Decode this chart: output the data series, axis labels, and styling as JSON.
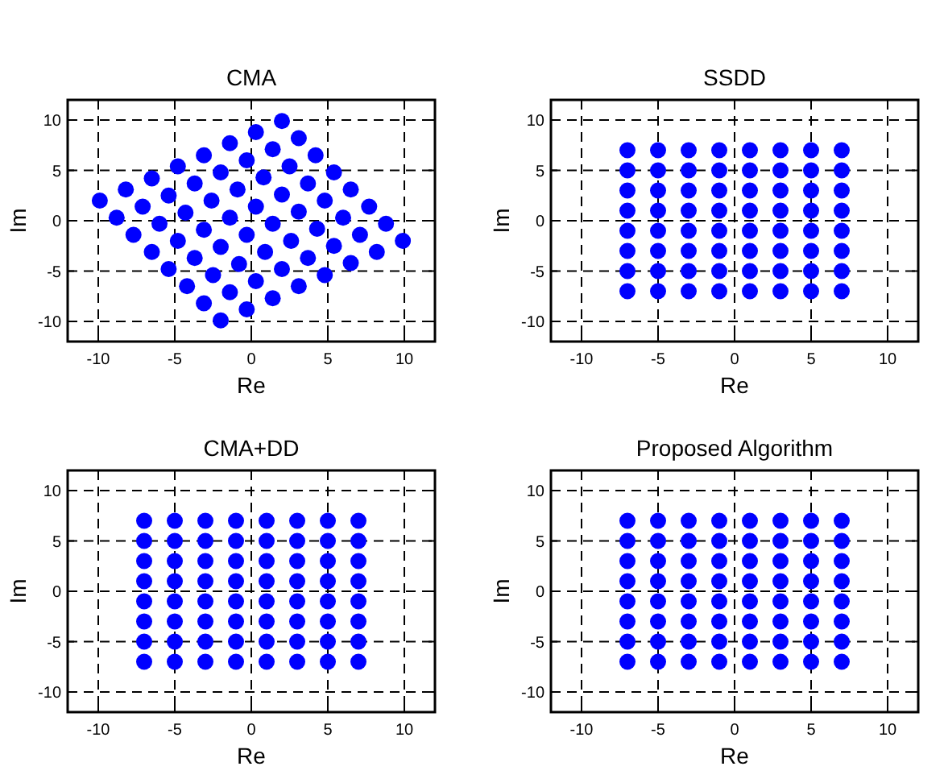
{
  "chart_data": [
    {
      "type": "scatter",
      "title": "CMA",
      "xlabel": "Re",
      "ylabel": "Im",
      "xlim": [
        -12,
        12
      ],
      "ylim": [
        -12,
        12
      ],
      "xticks": [
        -10,
        -5,
        0,
        5,
        10
      ],
      "yticks": [
        -10,
        -5,
        0,
        5,
        10
      ],
      "grid": true,
      "marker": "circle",
      "series": [
        {
          "color": "#0000ff",
          "x": [
            -2.0,
            -3.1,
            -4.2,
            -5.4,
            -6.5,
            -7.7,
            -8.8,
            -9.9,
            -0.3,
            -1.4,
            -2.5,
            -3.7,
            -4.8,
            -6.0,
            -7.1,
            -8.2,
            1.4,
            0.3,
            -0.8,
            -2.0,
            -3.1,
            -4.3,
            -5.4,
            -6.5,
            3.1,
            2.0,
            0.9,
            -0.3,
            -1.4,
            -2.6,
            -3.7,
            -4.8,
            4.8,
            3.7,
            2.6,
            1.4,
            0.3,
            -0.9,
            -2.0,
            -3.1,
            6.5,
            5.4,
            4.3,
            3.1,
            2.0,
            0.8,
            -0.3,
            -1.4,
            8.2,
            7.1,
            6.0,
            4.8,
            3.7,
            2.5,
            1.4,
            0.3,
            9.9,
            8.8,
            7.7,
            6.5,
            5.4,
            4.2,
            3.1,
            2.0
          ],
          "values": [
            -9.9,
            -8.2,
            -6.5,
            -4.8,
            -3.1,
            -1.4,
            0.3,
            2.0,
            -8.8,
            -7.1,
            -5.4,
            -3.7,
            -2.0,
            -0.3,
            1.4,
            3.1,
            -7.7,
            -6.0,
            -4.3,
            -2.6,
            -0.9,
            0.8,
            2.5,
            4.2,
            -6.5,
            -4.8,
            -3.1,
            -1.4,
            0.3,
            2.0,
            3.7,
            5.4,
            -5.4,
            -3.7,
            -2.0,
            -0.3,
            1.4,
            3.1,
            4.8,
            6.5,
            -4.2,
            -2.5,
            -0.8,
            0.9,
            2.6,
            4.3,
            6.0,
            7.7,
            -3.1,
            -1.4,
            0.3,
            2.0,
            3.7,
            5.4,
            7.1,
            8.8,
            -2.0,
            -0.3,
            1.4,
            3.1,
            4.8,
            6.5,
            8.2,
            9.9
          ]
        }
      ]
    },
    {
      "type": "scatter",
      "title": "SSDD",
      "xlabel": "Re",
      "ylabel": "Im",
      "xlim": [
        -12,
        12
      ],
      "ylim": [
        -12,
        12
      ],
      "xticks": [
        -10,
        -5,
        0,
        5,
        10
      ],
      "yticks": [
        -10,
        -5,
        0,
        5,
        10
      ],
      "grid": true,
      "marker": "circle",
      "series": [
        {
          "color": "#0000ff",
          "x": [
            -7,
            -5,
            -3,
            -1,
            1,
            3,
            5,
            7,
            -7,
            -5,
            -3,
            -1,
            1,
            3,
            5,
            7,
            -7,
            -5,
            -3,
            -1,
            1,
            3,
            5,
            7,
            -7,
            -5,
            -3,
            -1,
            1,
            3,
            5,
            7,
            -7,
            -5,
            -3,
            -1,
            1,
            3,
            5,
            7,
            -7,
            -5,
            -3,
            -1,
            1,
            3,
            5,
            7,
            -7,
            -5,
            -3,
            -1,
            1,
            3,
            5,
            7,
            -7,
            -5,
            -3,
            -1,
            1,
            3,
            5,
            7
          ],
          "values": [
            7,
            7,
            7,
            7,
            7,
            7,
            7,
            7,
            5,
            5,
            5,
            5,
            5,
            5,
            5,
            5,
            3,
            3,
            3,
            3,
            3,
            3,
            3,
            3,
            1,
            1,
            1,
            1,
            1,
            1,
            1,
            1,
            -1,
            -1,
            -1,
            -1,
            -1,
            -1,
            -1,
            -1,
            -3,
            -3,
            -3,
            -3,
            -3,
            -3,
            -3,
            -3,
            -5,
            -5,
            -5,
            -5,
            -5,
            -5,
            -5,
            -5,
            -7,
            -7,
            -7,
            -7,
            -7,
            -7,
            -7,
            -7
          ]
        }
      ]
    },
    {
      "type": "scatter",
      "title": "CMA+DD",
      "xlabel": "Re",
      "ylabel": "Im",
      "xlim": [
        -12,
        12
      ],
      "ylim": [
        -12,
        12
      ],
      "xticks": [
        -10,
        -5,
        0,
        5,
        10
      ],
      "yticks": [
        -10,
        -5,
        0,
        5,
        10
      ],
      "grid": true,
      "marker": "circle",
      "series": [
        {
          "color": "#0000ff",
          "x": [
            -7,
            -5,
            -3,
            -1,
            1,
            3,
            5,
            7,
            -7,
            -5,
            -3,
            -1,
            1,
            3,
            5,
            7,
            -7,
            -5,
            -3,
            -1,
            1,
            3,
            5,
            7,
            -7,
            -5,
            -3,
            -1,
            1,
            3,
            5,
            7,
            -7,
            -5,
            -3,
            -1,
            1,
            3,
            5,
            7,
            -7,
            -5,
            -3,
            -1,
            1,
            3,
            5,
            7,
            -7,
            -5,
            -3,
            -1,
            1,
            3,
            5,
            7,
            -7,
            -5,
            -3,
            -1,
            1,
            3,
            5,
            7
          ],
          "values": [
            7,
            7,
            7,
            7,
            7,
            7,
            7,
            7,
            5,
            5,
            5,
            5,
            5,
            5,
            5,
            5,
            3,
            3,
            3,
            3,
            3,
            3,
            3,
            3,
            1,
            1,
            1,
            1,
            1,
            1,
            1,
            1,
            -1,
            -1,
            -1,
            -1,
            -1,
            -1,
            -1,
            -1,
            -3,
            -3,
            -3,
            -3,
            -3,
            -3,
            -3,
            -3,
            -5,
            -5,
            -5,
            -5,
            -5,
            -5,
            -5,
            -5,
            -7,
            -7,
            -7,
            -7,
            -7,
            -7,
            -7,
            -7
          ]
        }
      ]
    },
    {
      "type": "scatter",
      "title": "Proposed Algorithm",
      "xlabel": "Re",
      "ylabel": "Im",
      "xlim": [
        -12,
        12
      ],
      "ylim": [
        -12,
        12
      ],
      "xticks": [
        -10,
        -5,
        0,
        5,
        10
      ],
      "yticks": [
        -10,
        -5,
        0,
        5,
        10
      ],
      "grid": true,
      "marker": "circle",
      "series": [
        {
          "color": "#0000ff",
          "x": [
            -7,
            -5,
            -3,
            -1,
            1,
            3,
            5,
            7,
            -7,
            -5,
            -3,
            -1,
            1,
            3,
            5,
            7,
            -7,
            -5,
            -3,
            -1,
            1,
            3,
            5,
            7,
            -7,
            -5,
            -3,
            -1,
            1,
            3,
            5,
            7,
            -7,
            -5,
            -3,
            -1,
            1,
            3,
            5,
            7,
            -7,
            -5,
            -3,
            -1,
            1,
            3,
            5,
            7,
            -7,
            -5,
            -3,
            -1,
            1,
            3,
            5,
            7,
            -7,
            -5,
            -3,
            -1,
            1,
            3,
            5,
            7
          ],
          "values": [
            7,
            7,
            7,
            7,
            7,
            7,
            7,
            7,
            5,
            5,
            5,
            5,
            5,
            5,
            5,
            5,
            3,
            3,
            3,
            3,
            3,
            3,
            3,
            3,
            1,
            1,
            1,
            1,
            1,
            1,
            1,
            1,
            -1,
            -1,
            -1,
            -1,
            -1,
            -1,
            -1,
            -1,
            -3,
            -3,
            -3,
            -3,
            -3,
            -3,
            -3,
            -3,
            -5,
            -5,
            -5,
            -5,
            -5,
            -5,
            -5,
            -5,
            -7,
            -7,
            -7,
            -7,
            -7,
            -7,
            -7,
            -7
          ]
        }
      ]
    }
  ]
}
